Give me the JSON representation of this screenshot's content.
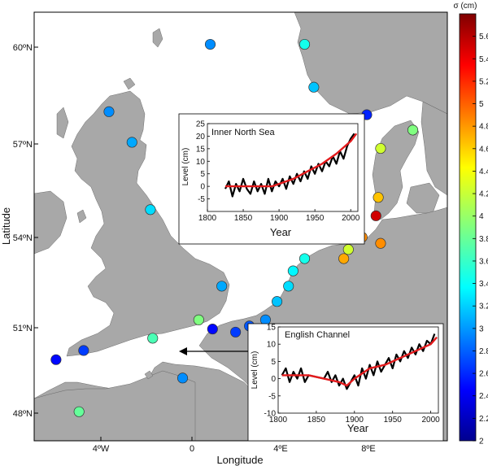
{
  "map": {
    "x_axis_label": "Longitude",
    "y_axis_label": "Latitude",
    "lon_ticks": [
      "4ºW",
      "0",
      "4ºE",
      "8ºE"
    ],
    "lat_ticks": [
      "60ºN",
      "57ºN",
      "54ºN",
      "51ºN",
      "48ºN"
    ]
  },
  "colorbar": {
    "title": "σ (cm)",
    "ticks": [
      "2",
      "2.2",
      "2.4",
      "2.6",
      "2.8",
      "3",
      "3.2",
      "3.4",
      "3.6",
      "3.8",
      "4",
      "4.2",
      "4.4",
      "4.6",
      "4.8",
      "5",
      "5.2",
      "5.4",
      "5.6"
    ],
    "min": 2,
    "max": 5.8,
    "colormap": "jet"
  },
  "chart_data": [
    {
      "type": "scatter",
      "description_role": "tide-gauge stations colored by sigma",
      "x_label": "Longitude",
      "y_label": "Latitude",
      "color_label": "σ (cm)",
      "points": [
        {
          "lon": 1.2,
          "lat": 60.4,
          "sigma": 3.0
        },
        {
          "lon": -3.2,
          "lat": 58.2,
          "sigma": 3.0
        },
        {
          "lon": -2.2,
          "lat": 57.2,
          "sigma": 3.1
        },
        {
          "lon": 5.3,
          "lat": 60.4,
          "sigma": 3.5
        },
        {
          "lon": 5.7,
          "lat": 59.0,
          "sigma": 3.2
        },
        {
          "lon": 8.0,
          "lat": 58.1,
          "sigma": 2.6
        },
        {
          "lon": -1.4,
          "lat": 55.0,
          "sigma": 3.3
        },
        {
          "lon": 1.7,
          "lat": 52.5,
          "sigma": 3.1
        },
        {
          "lon": 0.7,
          "lat": 51.4,
          "sigma": 3.9
        },
        {
          "lon": -1.3,
          "lat": 50.8,
          "sigma": 3.7
        },
        {
          "lon": 1.3,
          "lat": 51.1,
          "sigma": 2.5
        },
        {
          "lon": -4.3,
          "lat": 50.4,
          "sigma": 2.7
        },
        {
          "lon": -5.5,
          "lat": 50.1,
          "sigma": 2.5
        },
        {
          "lon": 0.0,
          "lat": 49.5,
          "sigma": 3.0
        },
        {
          "lon": -4.5,
          "lat": 48.4,
          "sigma": 3.8
        },
        {
          "lon": 2.3,
          "lat": 51.0,
          "sigma": 2.7
        },
        {
          "lon": 2.9,
          "lat": 51.2,
          "sigma": 2.8
        },
        {
          "lon": 3.6,
          "lat": 51.4,
          "sigma": 3.0
        },
        {
          "lon": 4.1,
          "lat": 52.0,
          "sigma": 3.2
        },
        {
          "lon": 4.6,
          "lat": 52.5,
          "sigma": 3.3
        },
        {
          "lon": 4.8,
          "lat": 53.0,
          "sigma": 3.4
        },
        {
          "lon": 5.3,
          "lat": 53.4,
          "sigma": 3.5
        },
        {
          "lon": 7.0,
          "lat": 53.4,
          "sigma": 4.7
        },
        {
          "lon": 7.2,
          "lat": 53.7,
          "sigma": 4.2
        },
        {
          "lon": 7.8,
          "lat": 54.1,
          "sigma": 4.8
        },
        {
          "lon": 8.6,
          "lat": 53.9,
          "sigma": 4.8
        },
        {
          "lon": 8.4,
          "lat": 54.8,
          "sigma": 5.5
        },
        {
          "lon": 8.5,
          "lat": 55.4,
          "sigma": 4.6
        },
        {
          "lon": 8.6,
          "lat": 57.0,
          "sigma": 4.2
        },
        {
          "lon": 10.0,
          "lat": 57.6,
          "sigma": 3.9
        }
      ]
    },
    {
      "type": "line",
      "title": "Inner North Sea",
      "xlabel": "Year",
      "ylabel": "Level (cm)",
      "xlim": [
        1800,
        2010
      ],
      "ylim": [
        -10,
        25
      ],
      "x_ticks": [
        1800,
        1850,
        1900,
        1950,
        2000
      ],
      "y_ticks": [
        -5,
        0,
        5,
        10,
        15,
        20,
        25
      ],
      "series": [
        {
          "color": "#000000",
          "x": [
            1825,
            1830,
            1835,
            1840,
            1845,
            1850,
            1855,
            1860,
            1865,
            1870,
            1875,
            1880,
            1885,
            1890,
            1895,
            1900,
            1905,
            1910,
            1915,
            1920,
            1925,
            1930,
            1935,
            1940,
            1945,
            1950,
            1955,
            1960,
            1965,
            1970,
            1975,
            1980,
            1985,
            1990,
            1995,
            2000,
            2005
          ],
          "y": [
            -1,
            2,
            -4,
            1,
            -2,
            3,
            -1,
            -3,
            2,
            -2,
            1,
            -3,
            3,
            -2,
            2,
            0,
            3,
            -1,
            4,
            1,
            5,
            2,
            6,
            3,
            8,
            5,
            9,
            6,
            10,
            8,
            12,
            9,
            14,
            11,
            16,
            19,
            21
          ]
        },
        {
          "color": "#e31a1c",
          "x": [
            1825,
            1850,
            1875,
            1890,
            1900,
            1920,
            1940,
            1960,
            1980,
            2000,
            2008
          ],
          "y": [
            0,
            0,
            0,
            0,
            1,
            3,
            6,
            9,
            13,
            18,
            21
          ]
        }
      ]
    },
    {
      "type": "line",
      "title": "English Channel",
      "xlabel": "Year",
      "ylabel": "Level (cm)",
      "xlim": [
        1800,
        2010
      ],
      "ylim": [
        -10,
        15
      ],
      "x_ticks": [
        1800,
        1850,
        1900,
        1950,
        2000
      ],
      "y_ticks": [
        -10,
        -5,
        0,
        5,
        10,
        15
      ],
      "series": [
        {
          "color": "#000000",
          "x": [
            1805,
            1810,
            1815,
            1820,
            1825,
            1830,
            1835,
            1840,
            1860,
            1865,
            1870,
            1875,
            1880,
            1885,
            1890,
            1895,
            1900,
            1905,
            1910,
            1915,
            1920,
            1925,
            1930,
            1935,
            1940,
            1945,
            1950,
            1955,
            1960,
            1965,
            1970,
            1975,
            1980,
            1985,
            1990,
            1995,
            2000,
            2005
          ],
          "y": [
            1,
            3,
            -1,
            2,
            0,
            3,
            -1,
            1,
            0,
            2,
            -1,
            1,
            -2,
            0,
            -3,
            -1,
            1,
            -2,
            3,
            0,
            4,
            1,
            5,
            2,
            4,
            6,
            3,
            7,
            5,
            8,
            6,
            9,
            7,
            10,
            8,
            11,
            10,
            13
          ]
        },
        {
          "color": "#e31a1c",
          "x": [
            1805,
            1840,
            1860,
            1880,
            1890,
            1900,
            1920,
            1940,
            1960,
            1980,
            2000,
            2008
          ],
          "y": [
            1,
            1,
            0,
            -1,
            -2,
            0,
            3,
            4,
            6,
            8,
            10,
            12
          ]
        }
      ]
    }
  ]
}
